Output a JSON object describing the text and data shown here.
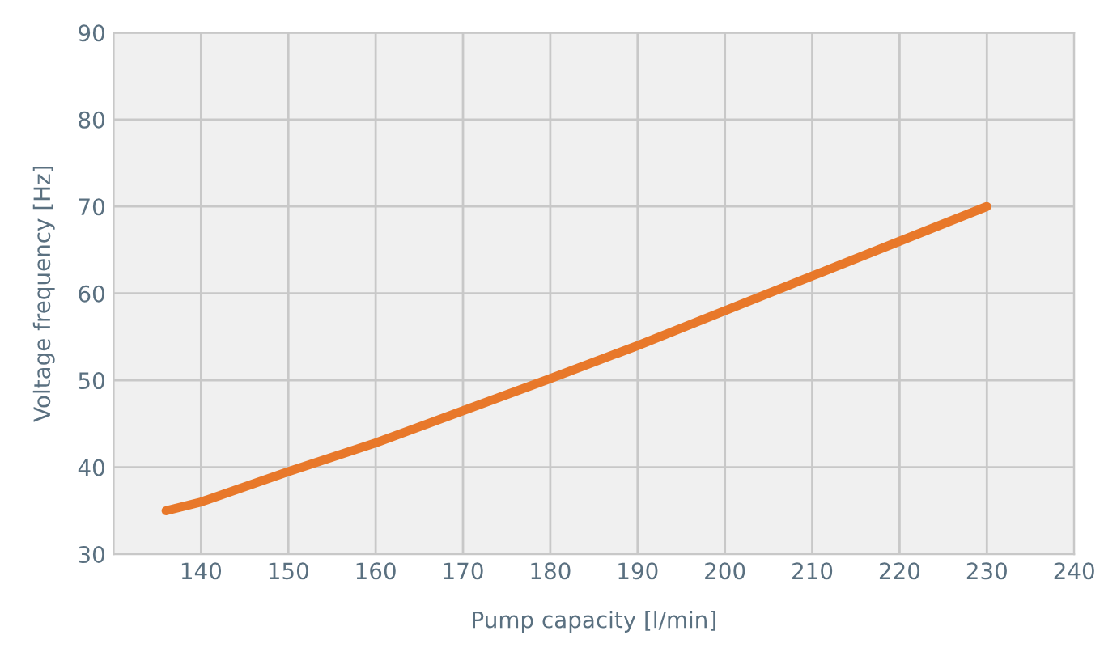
{
  "chart_data": {
    "type": "line",
    "xlabel": "Pump capacity [l/min]",
    "ylabel": "Voltage frequency [Hz]",
    "x": [
      136,
      140,
      150,
      160,
      170,
      180,
      190,
      200,
      210,
      220,
      230
    ],
    "series": [
      {
        "color": "#e8782a",
        "values": [
          35,
          36,
          39.5,
          42.8,
          46.5,
          50.2,
          54,
          58,
          62,
          66,
          70
        ]
      }
    ],
    "xlim": [
      130,
      240
    ],
    "xticks": [
      140,
      150,
      160,
      170,
      180,
      190,
      200,
      210,
      220,
      230,
      240
    ],
    "ylim": [
      30,
      90
    ],
    "yticks": [
      30,
      40,
      50,
      60,
      70,
      80,
      90
    ],
    "grid": true,
    "marker": "none",
    "line_style": "solid"
  }
}
